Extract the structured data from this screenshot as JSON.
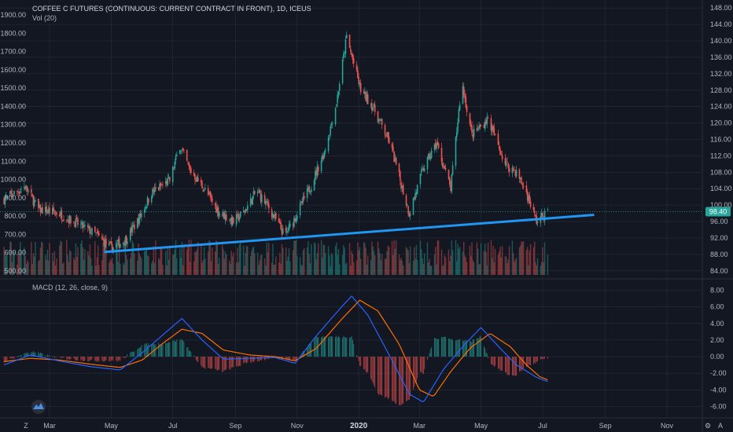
{
  "header": {
    "symbol_title": "COFFEE C FUTURES (CONTINUOUS: CURRENT CONTRACT IN FRONT), 1D, ICEUS",
    "volume_label": "Vol (20)",
    "macd_label": "MACD (12, 26, close, 9)"
  },
  "colors": {
    "background": "#131722",
    "grid": "#2a2e39",
    "up": "#26a69a",
    "down": "#ef5350",
    "trendline": "#2196f3",
    "macd_line": "#2962ff",
    "signal_line": "#ff6d00",
    "price_badge": "#26a69a"
  },
  "price_badge": "98.40",
  "footer_buttons": [
    "Z",
    "⚙",
    "A"
  ],
  "chart_data": [
    {
      "type": "candlestick",
      "x_ticks": [
        "Mar",
        "May",
        "Jul",
        "Sep",
        "Nov",
        "2020",
        "Mar",
        "May",
        "Jul",
        "Sep",
        "Nov"
      ],
      "y_right_ticks": [
        "148.00",
        "144.00",
        "140.00",
        "136.00",
        "132.00",
        "128.00",
        "124.00",
        "120.00",
        "116.00",
        "112.00",
        "108.00",
        "104.00",
        "100.00",
        "96.00",
        "92.00",
        "88.00",
        "84.00"
      ],
      "y_left_ticks": [
        "1900.00",
        "1800.00",
        "1700.00",
        "1600.00",
        "1500.00",
        "1400.00",
        "1300.00",
        "1200.00",
        "1100.00",
        "1000.00",
        "900.00",
        "800.00",
        "700.00",
        "600.00",
        "500.00"
      ],
      "ylim": [
        83,
        149
      ],
      "last_price": 98.4,
      "price_path": [
        [
          "2019-01-15",
          101.5
        ],
        [
          "2019-02-05",
          104.5
        ],
        [
          "2019-02-18",
          99.0
        ],
        [
          "2019-03-10",
          98.0
        ],
        [
          "2019-04-01",
          95.0
        ],
        [
          "2019-04-15",
          93.0
        ],
        [
          "2019-05-01",
          89.5
        ],
        [
          "2019-05-15",
          91.5
        ],
        [
          "2019-05-28",
          96.5
        ],
        [
          "2019-06-10",
          103.0
        ],
        [
          "2019-06-28",
          106.0
        ],
        [
          "2019-07-08",
          114.5
        ],
        [
          "2019-07-18",
          108.5
        ],
        [
          "2019-08-01",
          104.0
        ],
        [
          "2019-08-15",
          98.5
        ],
        [
          "2019-08-30",
          96.0
        ],
        [
          "2019-09-10",
          98.5
        ],
        [
          "2019-09-22",
          103.5
        ],
        [
          "2019-10-05",
          99.0
        ],
        [
          "2019-10-20",
          92.5
        ],
        [
          "2019-11-01",
          98.0
        ],
        [
          "2019-11-15",
          105.0
        ],
        [
          "2019-11-28",
          113.0
        ],
        [
          "2019-12-10",
          125.0
        ],
        [
          "2019-12-20",
          141.0
        ],
        [
          "2020-01-03",
          128.0
        ],
        [
          "2020-01-15",
          124.0
        ],
        [
          "2020-02-01",
          115.0
        ],
        [
          "2020-02-20",
          98.0
        ],
        [
          "2020-03-05",
          109.0
        ],
        [
          "2020-03-18",
          115.0
        ],
        [
          "2020-04-01",
          104.0
        ],
        [
          "2020-04-12",
          130.0
        ],
        [
          "2020-04-22",
          117.0
        ],
        [
          "2020-05-08",
          121.0
        ],
        [
          "2020-05-25",
          110.0
        ],
        [
          "2020-06-05",
          108.0
        ],
        [
          "2020-06-15",
          103.0
        ],
        [
          "2020-06-25",
          96.0
        ],
        [
          "2020-07-06",
          98.4
        ]
      ],
      "trendline": [
        [
          "2019-04-25",
          88.6
        ],
        [
          "2020-08-20",
          97.6
        ]
      ],
      "x_range": [
        "2019-01-11",
        "2020-12-06"
      ]
    },
    {
      "type": "bar",
      "series_name": "Vol (20)",
      "x_range": [
        "2019-01-15",
        "2020-07-06"
      ],
      "ylim": [
        0,
        3
      ]
    },
    {
      "type": "line",
      "series": [
        {
          "name": "MACD",
          "values_path": [
            [
              "2019-01-15",
              -1.0
            ],
            [
              "2019-02-10",
              0.2
            ],
            [
              "2019-03-10",
              -0.5
            ],
            [
              "2019-04-10",
              -1.2
            ],
            [
              "2019-05-10",
              -1.6
            ],
            [
              "2019-06-01",
              0.5
            ],
            [
              "2019-06-20",
              2.5
            ],
            [
              "2019-07-10",
              4.6
            ],
            [
              "2019-07-30",
              2.0
            ],
            [
              "2019-08-20",
              -0.3
            ],
            [
              "2019-09-15",
              -0.2
            ],
            [
              "2019-10-10",
              -0.1
            ],
            [
              "2019-10-30",
              -0.8
            ],
            [
              "2019-11-20",
              2.5
            ],
            [
              "2019-12-15",
              6.0
            ],
            [
              "2019-12-25",
              7.3
            ],
            [
              "2020-01-10",
              5.0
            ],
            [
              "2020-02-01",
              0.0
            ],
            [
              "2020-02-20",
              -4.5
            ],
            [
              "2020-03-05",
              -5.5
            ],
            [
              "2020-03-25",
              -1.5
            ],
            [
              "2020-04-15",
              1.5
            ],
            [
              "2020-05-01",
              3.5
            ],
            [
              "2020-05-20",
              1.0
            ],
            [
              "2020-06-05",
              -1.0
            ],
            [
              "2020-06-25",
              -2.5
            ],
            [
              "2020-07-06",
              -3.0
            ]
          ]
        },
        {
          "name": "Signal",
          "values_path": [
            [
              "2019-01-15",
              -0.6
            ],
            [
              "2019-02-10",
              -0.2
            ],
            [
              "2019-03-10",
              -0.4
            ],
            [
              "2019-04-10",
              -0.9
            ],
            [
              "2019-05-10",
              -1.3
            ],
            [
              "2019-06-01",
              -0.4
            ],
            [
              "2019-06-20",
              1.5
            ],
            [
              "2019-07-10",
              3.3
            ],
            [
              "2019-07-30",
              2.8
            ],
            [
              "2019-08-20",
              0.8
            ],
            [
              "2019-09-15",
              0.2
            ],
            [
              "2019-10-10",
              0.0
            ],
            [
              "2019-10-30",
              -0.5
            ],
            [
              "2019-11-20",
              1.0
            ],
            [
              "2019-12-15",
              4.5
            ],
            [
              "2020-01-02",
              6.8
            ],
            [
              "2020-01-20",
              5.5
            ],
            [
              "2020-02-10",
              1.5
            ],
            [
              "2020-03-01",
              -4.0
            ],
            [
              "2020-03-15",
              -4.8
            ],
            [
              "2020-04-01",
              -1.8
            ],
            [
              "2020-04-20",
              1.0
            ],
            [
              "2020-05-10",
              2.8
            ],
            [
              "2020-05-30",
              1.2
            ],
            [
              "2020-06-15",
              -1.0
            ],
            [
              "2020-06-28",
              -2.4
            ],
            [
              "2020-07-06",
              -2.8
            ]
          ]
        }
      ],
      "y_ticks": [
        "8.00",
        "6.00",
        "4.00",
        "2.00",
        "0.00",
        "-2.00",
        "-4.00",
        "-6.00"
      ],
      "ylim": [
        -6.9,
        8.9
      ]
    }
  ]
}
